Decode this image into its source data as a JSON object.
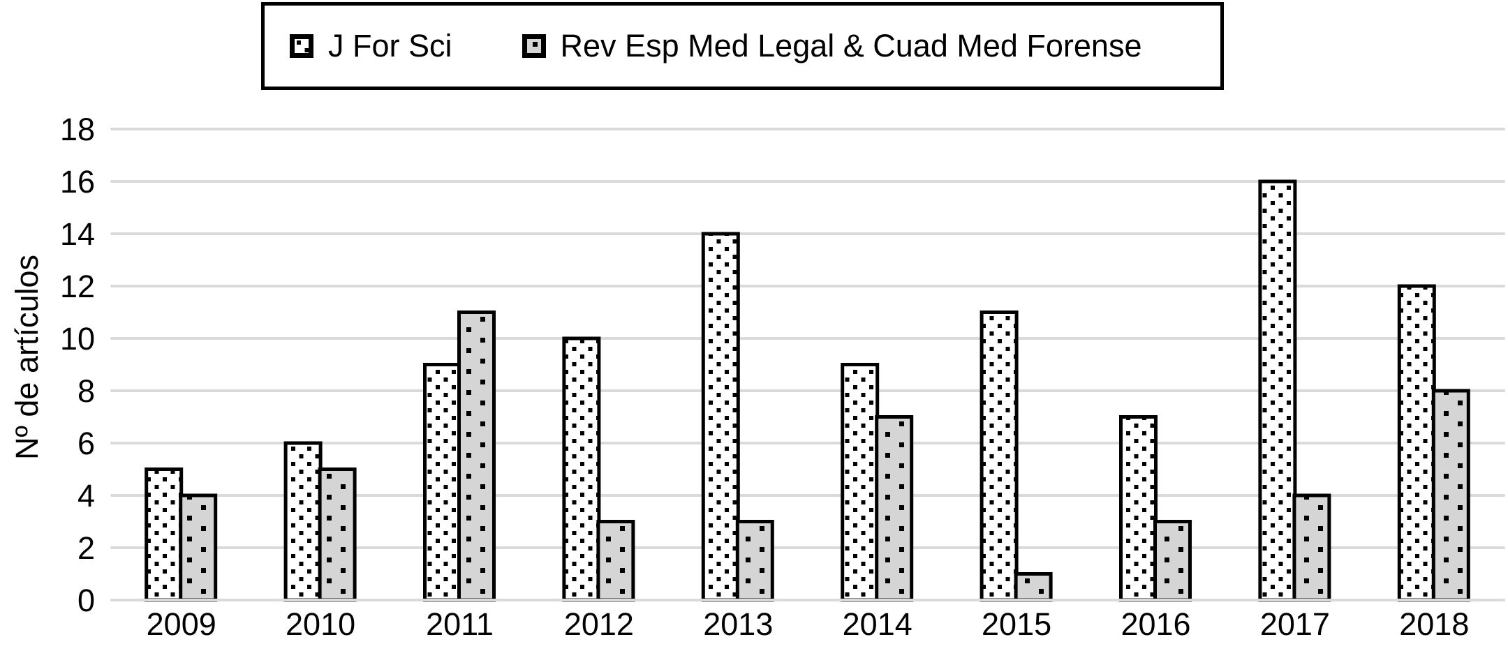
{
  "chart_data": {
    "type": "bar",
    "title": "",
    "xlabel": "",
    "ylabel": "Nº de artículos",
    "categories": [
      "2009",
      "2010",
      "2011",
      "2012",
      "2013",
      "2014",
      "2015",
      "2016",
      "2017",
      "2018"
    ],
    "series": [
      {
        "name": "J For Sci",
        "values": [
          5,
          6,
          9,
          10,
          14,
          9,
          11,
          7,
          16,
          12
        ]
      },
      {
        "name": "Rev Esp Med Legal & Cuad Med Forense",
        "values": [
          4,
          5,
          11,
          3,
          3,
          7,
          1,
          3,
          4,
          8
        ]
      }
    ],
    "yticks": [
      "0",
      "2",
      "4",
      "6",
      "8",
      "10",
      "12",
      "14",
      "16",
      "18"
    ],
    "ylim": [
      0,
      18
    ],
    "grid": "horizontal",
    "legend_position": "top",
    "colors": {
      "series1_fill": "#ffffff",
      "series2_fill": "#d5d5d5",
      "pattern_dot": "#000000",
      "bar_border": "#000000",
      "gridline": "#dadada",
      "text": "#000000"
    }
  }
}
